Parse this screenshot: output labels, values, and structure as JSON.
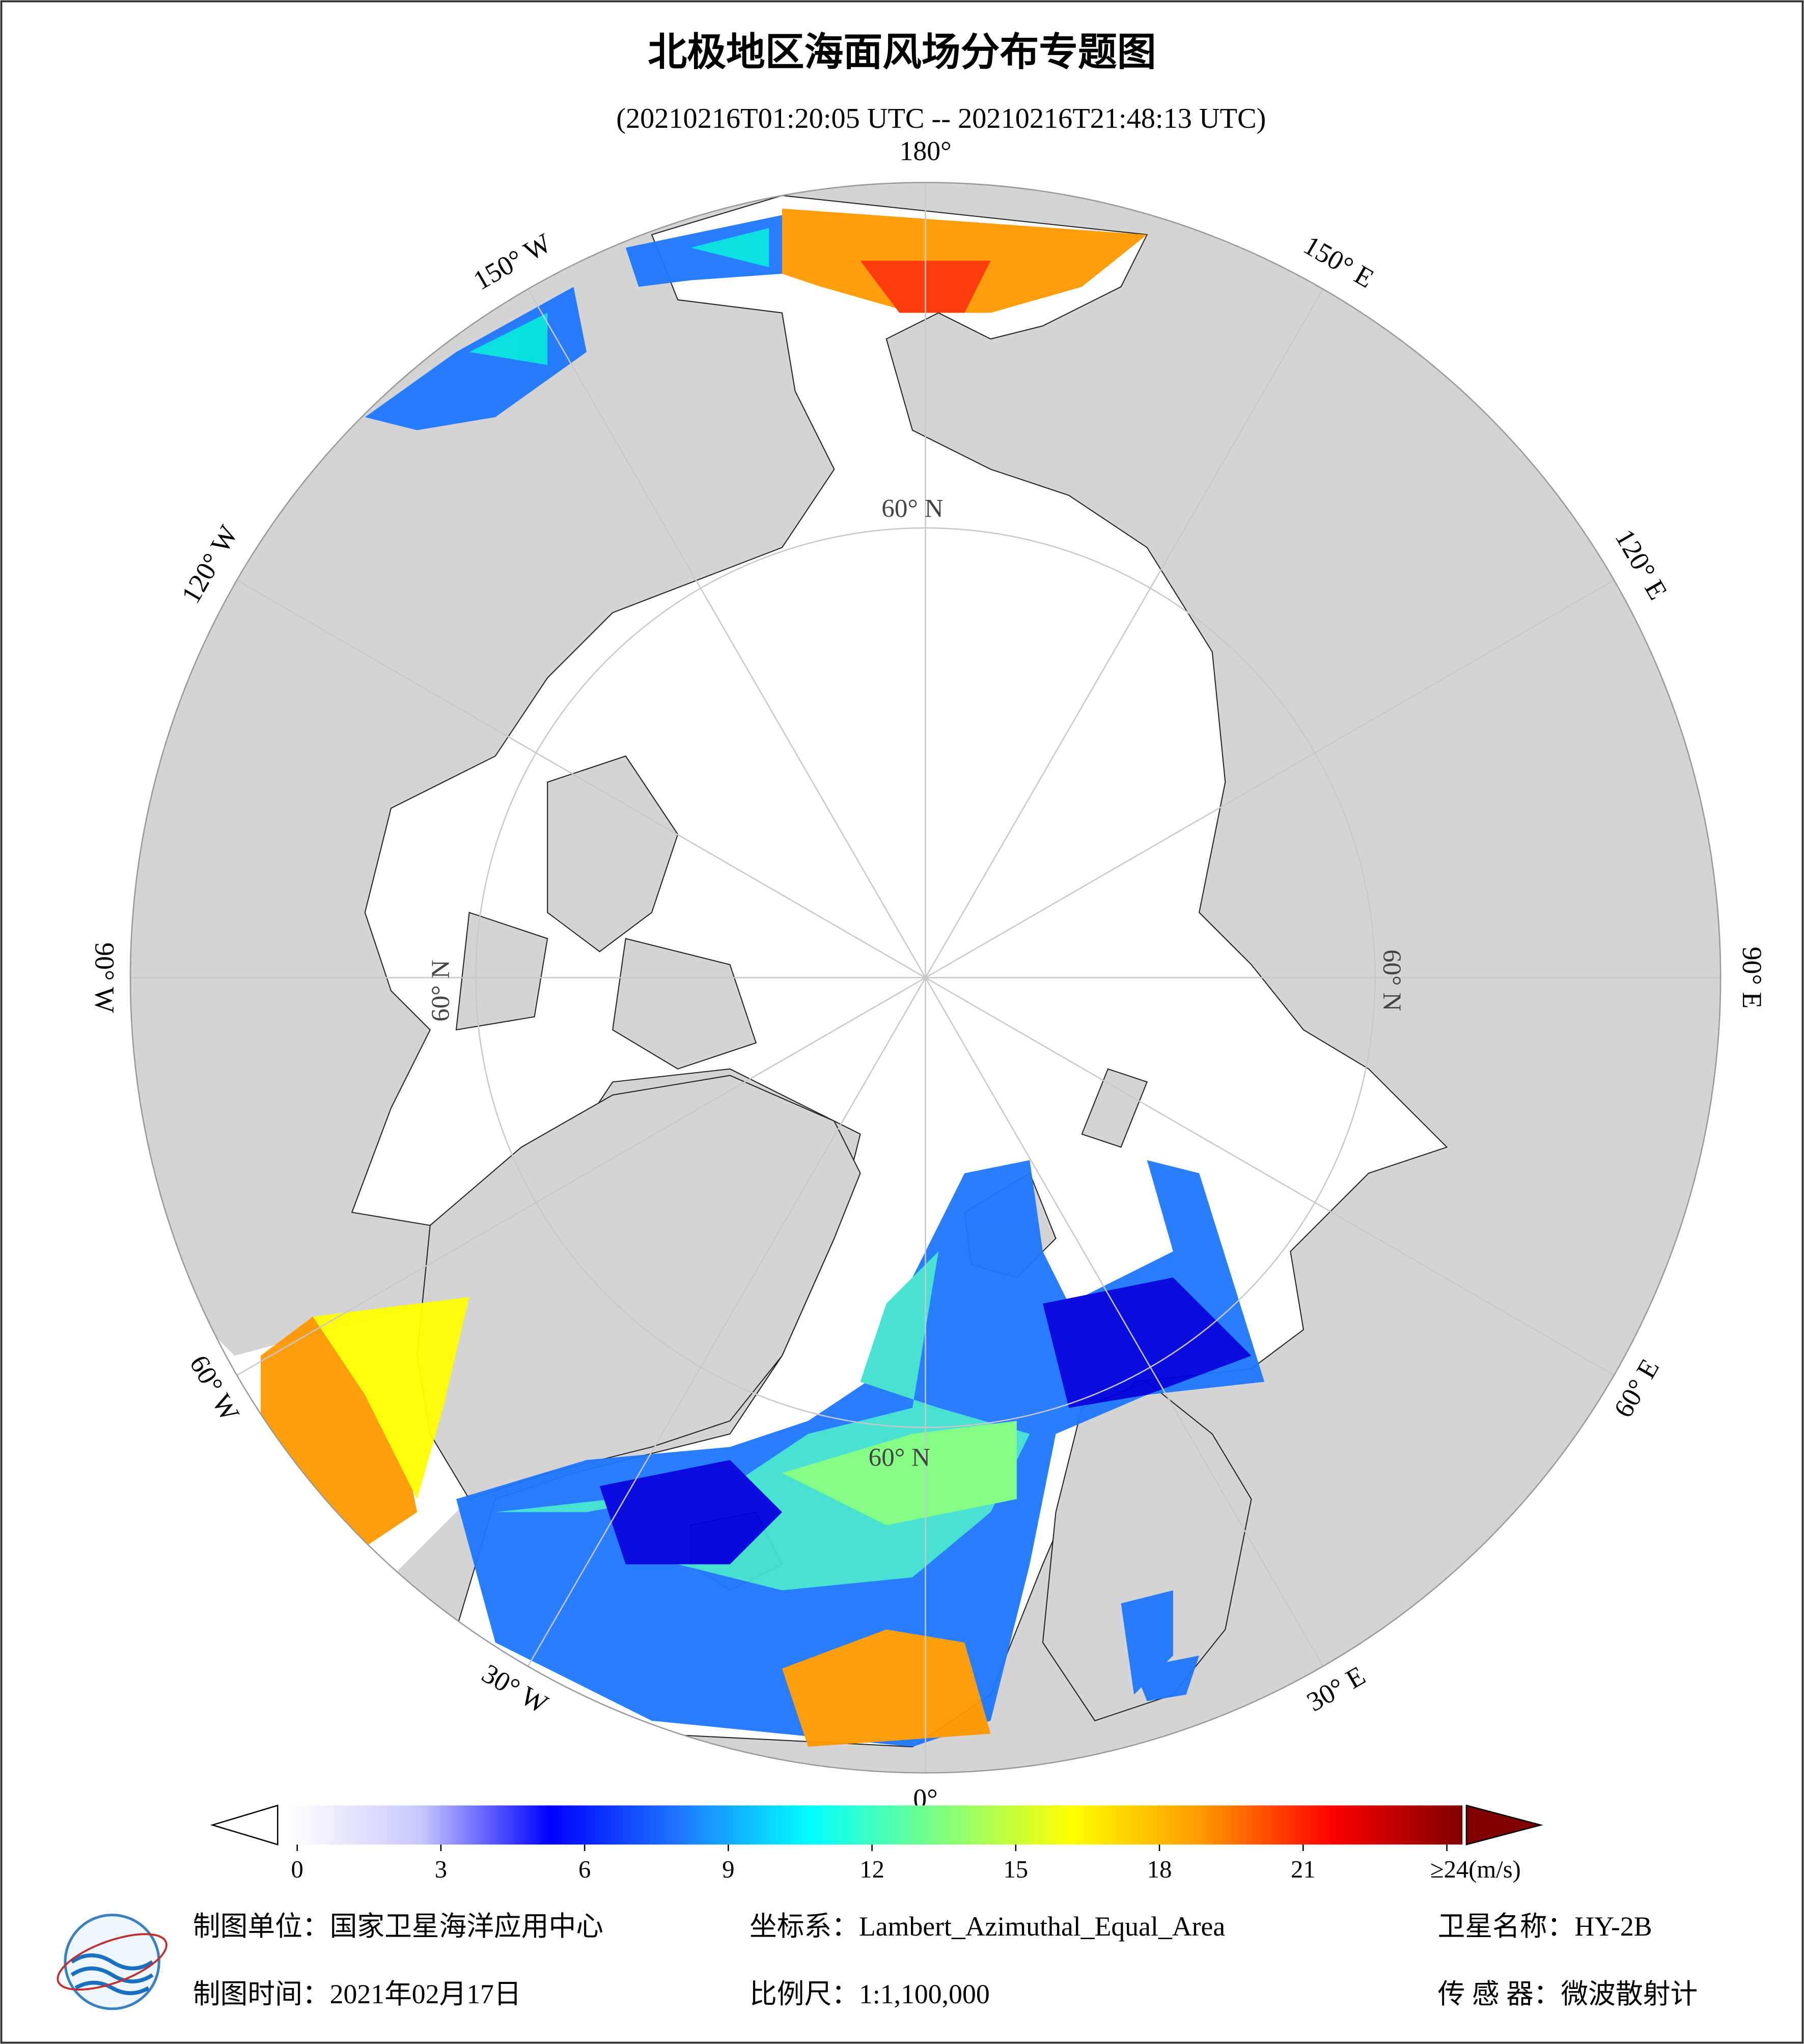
{
  "header": {
    "title": "北极地区海面风场分布专题图",
    "subtitle": "(20210216T01:20:05 UTC -- 20210216T21:48:13 UTC)"
  },
  "map": {
    "lon_labels": [
      "180°",
      "150° E",
      "120° E",
      "90° E",
      "60° E",
      "30° E",
      "0°",
      "30° W",
      "60° W",
      "90° W",
      "120° W",
      "150° W"
    ],
    "lat_labels": [
      "60° N",
      "60° N",
      "60° N",
      "60° N"
    ]
  },
  "colorbar": {
    "range": [
      0,
      24
    ],
    "ticks": [
      0,
      3,
      6,
      9,
      12,
      15,
      18,
      21,
      {
        "value": 24,
        "label": "≥24(m/s)"
      }
    ],
    "colors": [
      "#ffffff",
      "#c8c8ff",
      "#0000ff",
      "#1e78ff",
      "#00ffff",
      "#80ff80",
      "#ffff00",
      "#ff9900",
      "#ff0000",
      "#800000"
    ]
  },
  "footer": {
    "unit": "制图单位：国家卫星海洋应用中心",
    "crs": "坐标系：Lambert_Azimuthal_Equal_Area",
    "satellite": "卫星名称：HY-2B",
    "date": "制图时间：2021年02月17日",
    "scale": "比例尺：1:1,100,000",
    "sensor": "传 感 器：微波散射计"
  }
}
